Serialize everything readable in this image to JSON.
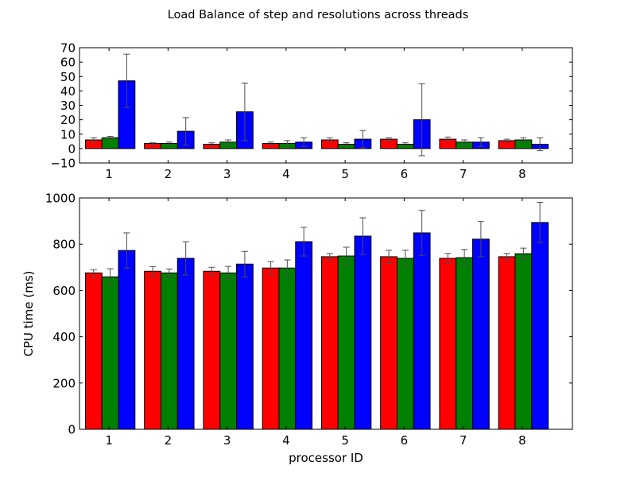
{
  "figure": {
    "title": "Load Balance of step and resolutions across threads"
  },
  "chart_data": [
    {
      "type": "bar",
      "title": "Load Balance of step and resolutions across threads",
      "xlabel": "",
      "ylabel": "",
      "categories": [
        "1",
        "2",
        "3",
        "4",
        "5",
        "6",
        "7",
        "8"
      ],
      "ylim": [
        -10,
        70
      ],
      "yticks": [
        -10,
        0,
        10,
        20,
        30,
        40,
        50,
        60,
        70
      ],
      "series": [
        {
          "name": "red",
          "color": "#ff0000",
          "values": [
            6,
            3.5,
            3,
            3.5,
            6,
            6.5,
            6.5,
            5.5
          ],
          "errors": [
            1.5,
            0.5,
            1,
            1,
            1.5,
            1,
            1.5,
            1
          ]
        },
        {
          "name": "green",
          "color": "#008000",
          "values": [
            7.5,
            3.5,
            4.5,
            3.5,
            3,
            3,
            4.5,
            6
          ],
          "errors": [
            1,
            1,
            1.5,
            2,
            1,
            1,
            1.5,
            1.5
          ]
        },
        {
          "name": "blue",
          "color": "#0000ff",
          "values": [
            47,
            12,
            25.5,
            4.5,
            6.5,
            20,
            4.5,
            3
          ],
          "errors": [
            18.5,
            9.5,
            20,
            3,
            6,
            25,
            3,
            4.5
          ]
        }
      ]
    },
    {
      "type": "bar",
      "title": "",
      "xlabel": "processor ID",
      "ylabel": "CPU time (ms)",
      "categories": [
        "1",
        "2",
        "3",
        "4",
        "5",
        "6",
        "7",
        "8"
      ],
      "ylim": [
        0,
        1000
      ],
      "yticks": [
        0,
        200,
        400,
        600,
        800,
        1000
      ],
      "series": [
        {
          "name": "red",
          "color": "#ff0000",
          "values": [
            676,
            683,
            683,
            697,
            746,
            746,
            739,
            746
          ],
          "errors": [
            14,
            20,
            17,
            28,
            14,
            28,
            21,
            14
          ]
        },
        {
          "name": "green",
          "color": "#008000",
          "values": [
            659,
            676,
            676,
            697,
            749,
            739,
            742,
            759
          ],
          "errors": [
            35,
            17,
            28,
            35,
            38,
            35,
            35,
            24
          ]
        },
        {
          "name": "blue",
          "color": "#0000ff",
          "values": [
            773,
            739,
            714,
            811,
            835,
            849,
            822,
            894
          ],
          "errors": [
            76,
            72,
            55,
            62,
            79,
            97,
            76,
            87
          ]
        }
      ]
    }
  ]
}
